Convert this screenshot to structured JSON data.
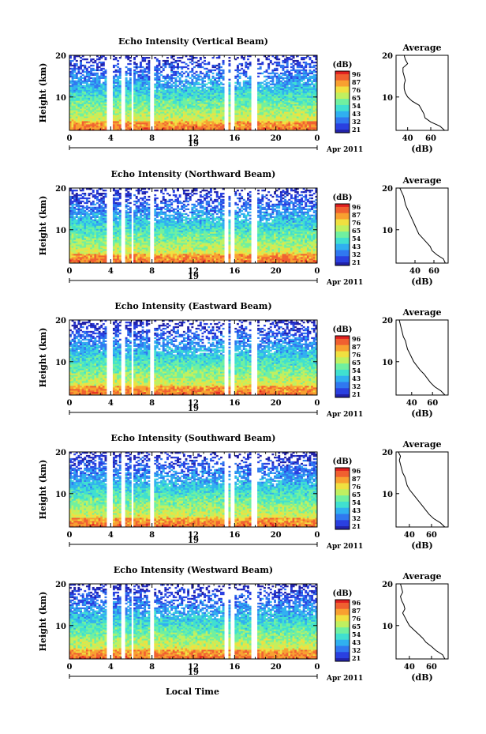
{
  "figure": {
    "xlabel": "Local Time",
    "date_label": "Apr 2011",
    "day_marker": "19",
    "colorbar_unit": "(dB)",
    "colorbar_ticks": [
      "96",
      "87",
      "76",
      "65",
      "54",
      "43",
      "32",
      "21"
    ],
    "colorscale": [
      "#2222a8",
      "#2a40e0",
      "#3078f0",
      "#30b0f0",
      "#40e0d0",
      "#70f0a0",
      "#c0f060",
      "#f0e040",
      "#f8a030",
      "#f06030",
      "#e02020"
    ],
    "avg_title": "Average",
    "avg_xlabel": "(dB)"
  },
  "panels": [
    {
      "title": "Echo Intensity (Vertical Beam)",
      "ylabel": "Height (km)"
    },
    {
      "title": "Echo Intensity (Northward Beam)",
      "ylabel": "Height (km)"
    },
    {
      "title": "Echo Intensity (Eastward Beam)",
      "ylabel": "Height (km)"
    },
    {
      "title": "Echo Intensity (Southward Beam)",
      "ylabel": "Height (km)"
    },
    {
      "title": "Echo Intensity (Westward Beam)",
      "ylabel": "Height (km)"
    }
  ],
  "chart_data": [
    {
      "type": "heatmap",
      "title": "Echo Intensity (Vertical Beam)",
      "xlabel": "",
      "ylabel": "Height (km)",
      "xlim": [
        0,
        24
      ],
      "ylim": [
        2,
        20
      ],
      "xticks": [
        "0",
        "4",
        "8",
        "12",
        "16",
        "20",
        "0"
      ],
      "yticks": [
        "10",
        "20"
      ],
      "colorbar": {
        "label": "(dB)",
        "ticks": [
          96,
          87,
          76,
          65,
          54,
          43,
          32,
          21
        ]
      },
      "data_gaps_hours": [
        [
          3.6,
          4.1
        ],
        [
          5.1,
          5.4
        ],
        [
          5.9,
          6.3
        ],
        [
          7.8,
          8.2
        ],
        [
          15.0,
          15.3
        ],
        [
          15.7,
          16.0
        ],
        [
          17.7,
          18.1
        ]
      ],
      "average_profile": {
        "title": "Average",
        "xlabel": "(dB)",
        "xticks": [
          40,
          60
        ],
        "xlim": [
          30,
          75
        ],
        "height_km": [
          2,
          3,
          4,
          5,
          6,
          7,
          8,
          9,
          10,
          11,
          12,
          13,
          14,
          15,
          16,
          17,
          18,
          19,
          20
        ],
        "value_db": [
          72,
          68,
          60,
          55,
          54,
          52,
          50,
          44,
          40,
          38,
          37,
          37,
          38,
          37,
          36,
          36,
          40,
          38,
          37
        ]
      }
    },
    {
      "type": "heatmap",
      "title": "Echo Intensity (Northward Beam)",
      "xlabel": "",
      "ylabel": "Height (km)",
      "xlim": [
        0,
        24
      ],
      "ylim": [
        2,
        20
      ],
      "xticks": [
        "0",
        "4",
        "8",
        "12",
        "16",
        "20",
        "0"
      ],
      "yticks": [
        "10",
        "20"
      ],
      "colorbar": {
        "label": "(dB)",
        "ticks": [
          96,
          87,
          76,
          65,
          54,
          43,
          32,
          21
        ]
      },
      "data_gaps_hours": [
        [
          3.6,
          4.1
        ],
        [
          5.1,
          5.4
        ],
        [
          5.9,
          6.3
        ],
        [
          7.8,
          8.2
        ],
        [
          15.0,
          15.3
        ],
        [
          15.7,
          16.0
        ],
        [
          17.7,
          18.1
        ]
      ],
      "average_profile": {
        "title": "Average",
        "xlabel": "(dB)",
        "xticks": [
          40,
          60
        ],
        "xlim": [
          20,
          75
        ],
        "height_km": [
          2,
          3,
          4,
          5,
          6,
          7,
          8,
          9,
          10,
          11,
          12,
          13,
          14,
          15,
          16,
          17,
          18,
          19,
          20
        ],
        "value_db": [
          72,
          70,
          63,
          58,
          56,
          52,
          48,
          44,
          42,
          40,
          38,
          36,
          34,
          32,
          30,
          29,
          28,
          26,
          24
        ]
      }
    },
    {
      "type": "heatmap",
      "title": "Echo Intensity (Eastward Beam)",
      "xlabel": "",
      "ylabel": "Height (km)",
      "xlim": [
        0,
        24
      ],
      "ylim": [
        2,
        20
      ],
      "xticks": [
        "0",
        "4",
        "8",
        "12",
        "16",
        "20",
        "0"
      ],
      "yticks": [
        "10",
        "20"
      ],
      "colorbar": {
        "label": "(dB)",
        "ticks": [
          96,
          87,
          76,
          65,
          54,
          43,
          32,
          21
        ]
      },
      "data_gaps_hours": [
        [
          3.6,
          4.1
        ],
        [
          5.1,
          5.4
        ],
        [
          5.9,
          6.3
        ],
        [
          7.8,
          8.2
        ],
        [
          15.0,
          15.3
        ],
        [
          15.7,
          16.0
        ],
        [
          17.7,
          18.1
        ]
      ],
      "average_profile": {
        "title": "Average",
        "xlabel": "(dB)",
        "xticks": [
          40,
          60
        ],
        "xlim": [
          25,
          75
        ],
        "height_km": [
          2,
          3,
          4,
          5,
          6,
          7,
          8,
          9,
          10,
          11,
          12,
          13,
          14,
          15,
          16,
          17,
          18,
          19,
          20
        ],
        "value_db": [
          72,
          68,
          62,
          58,
          55,
          52,
          48,
          45,
          42,
          40,
          38,
          36,
          35,
          34,
          32,
          31,
          30,
          29,
          28
        ]
      }
    },
    {
      "type": "heatmap",
      "title": "Echo Intensity (Southward Beam)",
      "xlabel": "",
      "ylabel": "Height (km)",
      "xlim": [
        0,
        24
      ],
      "ylim": [
        2,
        20
      ],
      "xticks": [
        "0",
        "4",
        "8",
        "12",
        "16",
        "20",
        "0"
      ],
      "yticks": [
        "10",
        "20"
      ],
      "colorbar": {
        "label": "(dB)",
        "ticks": [
          96,
          87,
          76,
          65,
          54,
          43,
          32,
          21
        ]
      },
      "data_gaps_hours": [
        [
          3.6,
          4.1
        ],
        [
          5.1,
          5.4
        ],
        [
          5.9,
          6.3
        ],
        [
          7.8,
          8.2
        ],
        [
          15.0,
          15.3
        ],
        [
          15.7,
          16.0
        ],
        [
          17.7,
          18.1
        ]
      ],
      "average_profile": {
        "title": "Average",
        "xlabel": "(dB)",
        "xticks": [
          40,
          60
        ],
        "xlim": [
          28,
          75
        ],
        "height_km": [
          2,
          3,
          4,
          5,
          6,
          7,
          8,
          9,
          10,
          11,
          12,
          13,
          14,
          15,
          16,
          17,
          18,
          19,
          20
        ],
        "value_db": [
          72,
          68,
          62,
          58,
          55,
          52,
          49,
          46,
          43,
          40,
          38,
          37,
          36,
          34,
          33,
          32,
          31,
          32,
          30
        ]
      }
    },
    {
      "type": "heatmap",
      "title": "Echo Intensity (Westward Beam)",
      "xlabel": "Local Time",
      "ylabel": "Height (km)",
      "xlim": [
        0,
        24
      ],
      "ylim": [
        2,
        20
      ],
      "xticks": [
        "0",
        "4",
        "8",
        "12",
        "16",
        "20",
        "0"
      ],
      "yticks": [
        "10",
        "20"
      ],
      "colorbar": {
        "label": "(dB)",
        "ticks": [
          96,
          87,
          76,
          65,
          54,
          43,
          32,
          21
        ]
      },
      "data_gaps_hours": [
        [
          3.6,
          4.1
        ],
        [
          5.1,
          5.4
        ],
        [
          5.9,
          6.3
        ],
        [
          7.8,
          8.2
        ],
        [
          15.0,
          15.3
        ],
        [
          15.7,
          16.0
        ],
        [
          17.7,
          18.1
        ]
      ],
      "average_profile": {
        "title": "Average",
        "xlabel": "(dB)",
        "xticks": [
          40,
          60
        ],
        "xlim": [
          28,
          75
        ],
        "height_km": [
          2,
          3,
          4,
          5,
          6,
          7,
          8,
          9,
          10,
          11,
          12,
          13,
          14,
          15,
          16,
          17,
          18,
          19,
          20
        ],
        "value_db": [
          72,
          70,
          64,
          60,
          55,
          52,
          48,
          44,
          40,
          38,
          36,
          34,
          36,
          35,
          33,
          32,
          34,
          33,
          32
        ]
      }
    }
  ]
}
